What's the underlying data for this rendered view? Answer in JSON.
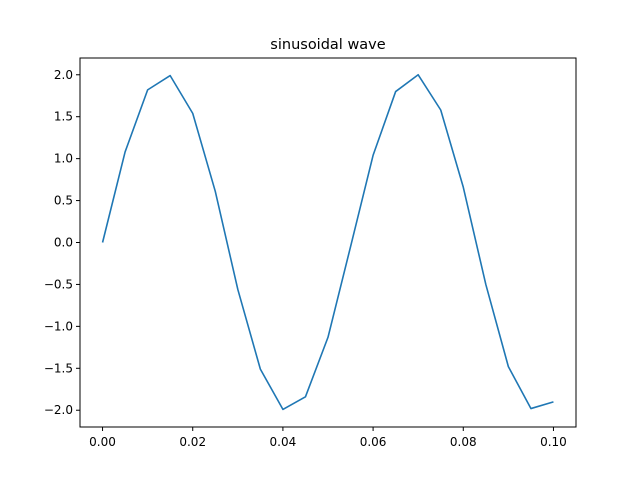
{
  "chart_data": {
    "type": "line",
    "title": "sinusoidal wave",
    "xlabel": "",
    "ylabel": "",
    "xlim": [
      -0.005,
      0.105
    ],
    "ylim": [
      -2.2,
      2.2
    ],
    "xticks": [
      0.0,
      0.02,
      0.04,
      0.06,
      0.08,
      0.1
    ],
    "xtick_labels": [
      "0.00",
      "0.02",
      "0.04",
      "0.06",
      "0.08",
      "0.10"
    ],
    "yticks": [
      2.0,
      1.5,
      1.0,
      0.5,
      0.0,
      -0.5,
      -1.0,
      -1.5,
      -2.0
    ],
    "ytick_labels": [
      "2.0",
      "1.5",
      "1.0",
      "0.5",
      "0.0",
      "−0.5",
      "−1.0",
      "−1.5",
      "−2.0"
    ],
    "grid": false,
    "series": [
      {
        "color": "#1f77b4",
        "x": [
          0.0,
          0.005,
          0.01,
          0.015,
          0.02,
          0.025,
          0.03,
          0.035,
          0.04,
          0.045,
          0.05,
          0.055,
          0.06,
          0.065,
          0.07,
          0.075,
          0.08,
          0.085,
          0.09,
          0.095,
          0.1
        ],
        "y": [
          0.0,
          1.08,
          1.82,
          1.99,
          1.54,
          0.61,
          -0.56,
          -1.51,
          -1.99,
          -1.84,
          -1.13,
          -0.05,
          1.04,
          1.8,
          2.0,
          1.58,
          0.66,
          -0.5,
          -1.48,
          -1.98,
          -1.9
        ]
      }
    ]
  }
}
